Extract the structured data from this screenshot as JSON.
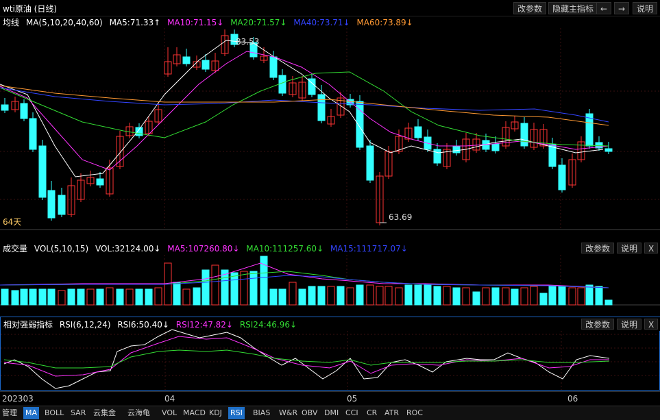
{
  "window": {
    "title": "wti原油 (日线)",
    "buttons": [
      "改参数",
      "隐藏主指标",
      "←",
      "→",
      "说明"
    ]
  },
  "main": {
    "legend": [
      {
        "text": "均线",
        "color": "#ffffff"
      },
      {
        "text": "MA(5,10,20,40,60)",
        "color": "#ffffff"
      },
      {
        "text": "MA5:71.33↑",
        "color": "#ffffff"
      },
      {
        "text": "MA10:71.15↓",
        "color": "#ff33ff"
      },
      {
        "text": "MA20:71.57↓",
        "color": "#33dd33"
      },
      {
        "text": "MA40:73.71↓",
        "color": "#3344ff"
      },
      {
        "text": "MA60:73.89↓",
        "color": "#ff9933"
      }
    ],
    "high_label": "83.53",
    "low_label": "63.69",
    "days_label": "64天"
  },
  "volume": {
    "legend": [
      {
        "text": "成交量",
        "color": "#ffffff"
      },
      {
        "text": "VOL(5,10,15)",
        "color": "#ffffff"
      },
      {
        "text": "VOL:32124.00↓",
        "color": "#ffffff"
      },
      {
        "text": "MA5:107260.80↓",
        "color": "#ff33ff"
      },
      {
        "text": "MA10:111257.60↓",
        "color": "#33dd33"
      },
      {
        "text": "MA15:111717.07↓",
        "color": "#3344ff"
      }
    ],
    "buttons": [
      "改参数",
      "说明",
      "X"
    ]
  },
  "rsi": {
    "legend": [
      {
        "text": "相对强弱指标",
        "color": "#ffffff"
      },
      {
        "text": "RSI(6,12,24)",
        "color": "#ffffff"
      },
      {
        "text": "RSI6:50.40↓",
        "color": "#ffffff"
      },
      {
        "text": "RSI12:47.82↓",
        "color": "#ff33ff"
      },
      {
        "text": "RSI24:46.96↓",
        "color": "#33dd33"
      }
    ],
    "buttons": [
      "改参数",
      "说明",
      "X"
    ]
  },
  "dates": [
    "202303",
    "04",
    "05",
    "06"
  ],
  "tabs": [
    "管理",
    "MA",
    "BOLL",
    "SAR",
    "云集金",
    "云海龟",
    "VOL",
    "MACD",
    "KDJ",
    "RSI",
    "BIAS",
    "W&R",
    "OBV",
    "DMI",
    "CCI",
    "CR",
    "ATR",
    "ROC"
  ],
  "active_tabs": [
    "MA",
    "RSI"
  ],
  "colors": {
    "up": "#ff3333",
    "down": "#33ffff",
    "ma5": "#ffffff",
    "ma10": "#ff33ff",
    "ma20": "#33dd33",
    "ma40": "#3344ff",
    "ma60": "#ff9933",
    "active_panel_border": "#1b67c9"
  }
}
